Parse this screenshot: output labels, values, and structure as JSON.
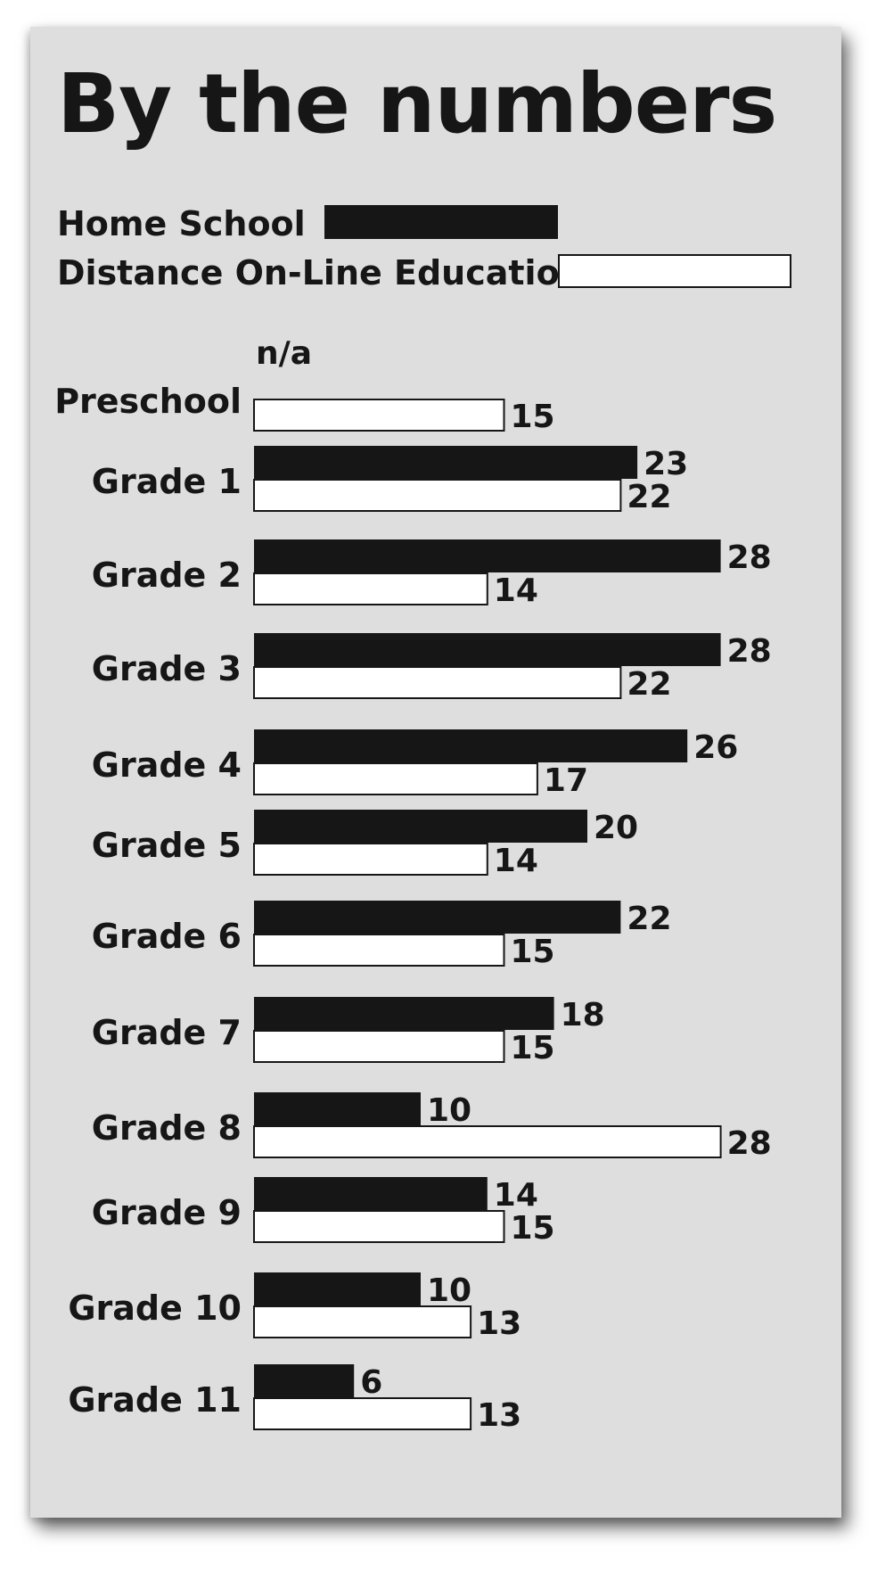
{
  "title": "By the numbers",
  "legend": {
    "home": {
      "label": "Home School",
      "color": "#161616"
    },
    "online": {
      "label": "Distance On-Line Education",
      "color": "#ffffff"
    }
  },
  "chart_data": {
    "type": "bar",
    "orientation": "horizontal",
    "title": "By the numbers",
    "categories": [
      "Preschool",
      "Grade 1",
      "Grade 2",
      "Grade 3",
      "Grade 4",
      "Grade 5",
      "Grade 6",
      "Grade 7",
      "Grade 8",
      "Grade 9",
      "Grade 10",
      "Grade 11"
    ],
    "series": [
      {
        "name": "Home School",
        "color": "#161616",
        "values": [
          null,
          23,
          28,
          28,
          26,
          20,
          22,
          18,
          10,
          14,
          10,
          6
        ],
        "labels": [
          "n/a",
          "23",
          "28",
          "28",
          "26",
          "20",
          "22",
          "18",
          "10",
          "14",
          "10",
          "6"
        ]
      },
      {
        "name": "Distance On-Line Education",
        "color": "#ffffff",
        "values": [
          15,
          22,
          14,
          22,
          17,
          14,
          15,
          15,
          28,
          15,
          13,
          13
        ],
        "labels": [
          "15",
          "22",
          "14",
          "22",
          "17",
          "14",
          "15",
          "15",
          "28",
          "15",
          "13",
          "13"
        ]
      }
    ],
    "xlim": [
      0,
      28
    ],
    "grid": false,
    "legend_position": "top-left",
    "xlabel": "",
    "ylabel": ""
  }
}
